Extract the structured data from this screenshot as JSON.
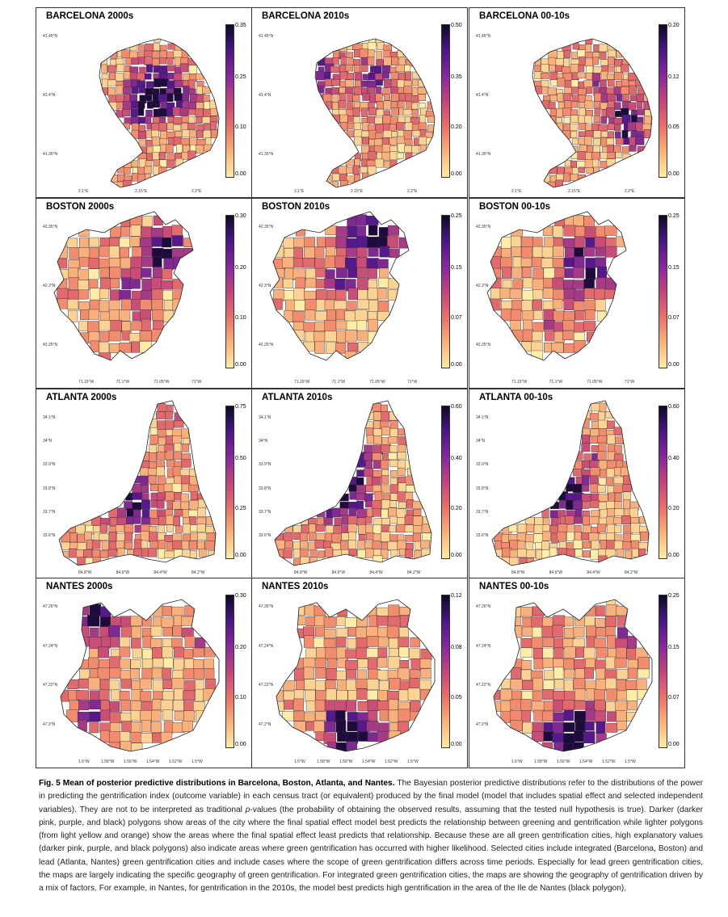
{
  "panels": [
    {
      "title": "BARCELONA 2000s",
      "city": "barcelona",
      "row": 0,
      "col": 0,
      "ticks": [
        "0.35",
        "0.25",
        "0.10",
        "0.00"
      ],
      "lats": [
        "41.45°N",
        "41.4°N",
        "41.35°N"
      ],
      "lons": [
        "2.1°E",
        "2.15°E",
        "2.2°E"
      ]
    },
    {
      "title": "BARCELONA 2010s",
      "city": "barcelona",
      "row": 0,
      "col": 1,
      "ticks": [
        "0.50",
        "0.35",
        "0.20",
        "0.00"
      ],
      "lats": [
        "41.45°N",
        "41.4°N",
        "41.35°N"
      ],
      "lons": [
        "2.1°E",
        "2.15°E",
        "2.2°E"
      ]
    },
    {
      "title": "BARCELONA 00-10s",
      "city": "barcelona",
      "row": 0,
      "col": 2,
      "ticks": [
        "0.20",
        "0.12",
        "0.05",
        "0.00"
      ],
      "lats": [
        "41.45°N",
        "41.4°N",
        "41.35°N"
      ],
      "lons": [
        "2.1°E",
        "2.15°E",
        "2.2°E"
      ]
    },
    {
      "title": "BOSTON 2000s",
      "city": "boston",
      "row": 1,
      "col": 0,
      "ticks": [
        "0.30",
        "0.20",
        "0.10",
        "0.00"
      ],
      "lats": [
        "42.35°N",
        "42.3°N",
        "42.25°N"
      ],
      "lons": [
        "71.15°W",
        "71.1°W",
        "71.05°W",
        "71°W"
      ]
    },
    {
      "title": "BOSTON 2010s",
      "city": "boston",
      "row": 1,
      "col": 1,
      "ticks": [
        "0.25",
        "0.15",
        "0.07",
        "0.00"
      ],
      "lats": [
        "42.35°N",
        "42.3°N",
        "42.25°N"
      ],
      "lons": [
        "71.15°W",
        "71.1°W",
        "71.05°W",
        "71°W"
      ]
    },
    {
      "title": "BOSTON 00-10s",
      "city": "boston",
      "row": 1,
      "col": 2,
      "ticks": [
        "0.25",
        "0.15",
        "0.07",
        "0.00"
      ],
      "lats": [
        "42.35°N",
        "42.3°N",
        "42.25°N"
      ],
      "lons": [
        "71.15°W",
        "71.1°W",
        "71.05°W",
        "71°W"
      ]
    },
    {
      "title": "ATLANTA 2000s",
      "city": "atlanta",
      "row": 2,
      "col": 0,
      "ticks": [
        "0.75",
        "0.50",
        "0.25",
        "0.00"
      ],
      "lats": [
        "34.1°N",
        "34°N",
        "33.9°N",
        "33.8°N",
        "33.7°N",
        "33.6°N"
      ],
      "lons": [
        "84.8°W",
        "84.6°W",
        "84.4°W",
        "84.2°W"
      ]
    },
    {
      "title": "ATLANTA 2010s",
      "city": "atlanta",
      "row": 2,
      "col": 1,
      "ticks": [
        "0.60",
        "0.40",
        "0.20",
        "0.00"
      ],
      "lats": [
        "34.1°N",
        "34°N",
        "33.9°N",
        "33.8°N",
        "33.7°N",
        "33.6°N"
      ],
      "lons": [
        "84.8°W",
        "84.6°W",
        "84.4°W",
        "84.2°W"
      ]
    },
    {
      "title": "ATLANTA 00-10s",
      "city": "atlanta",
      "row": 2,
      "col": 2,
      "ticks": [
        "0.60",
        "0.40",
        "0.20",
        "0.00"
      ],
      "lats": [
        "34.1°N",
        "34°N",
        "33.9°N",
        "33.8°N",
        "33.7°N",
        "33.6°N"
      ],
      "lons": [
        "84.8°W",
        "84.6°W",
        "84.4°W",
        "84.2°W"
      ]
    },
    {
      "title": "NANTES 2000s",
      "city": "nantes",
      "row": 3,
      "col": 0,
      "ticks": [
        "0.30",
        "0.20",
        "0.10",
        "0.00"
      ],
      "lats": [
        "47.26°N",
        "47.24°N",
        "47.22°N",
        "47.2°N"
      ],
      "lons": [
        "1.6°W",
        "1.58°W",
        "1.56°W",
        "1.54°W",
        "1.52°W",
        "1.5°W"
      ]
    },
    {
      "title": "NANTES 2010s",
      "city": "nantes",
      "row": 3,
      "col": 1,
      "ticks": [
        "0.12",
        "0.08",
        "0.05",
        "0.00"
      ],
      "lats": [
        "47.26°N",
        "47.24°N",
        "47.22°N",
        "47.2°N"
      ],
      "lons": [
        "1.6°W",
        "1.58°W",
        "1.56°W",
        "1.54°W",
        "1.52°W",
        "1.5°W"
      ]
    },
    {
      "title": "NANTES 00-10s",
      "city": "nantes",
      "row": 3,
      "col": 2,
      "ticks": [
        "0.25",
        "0.15",
        "0.07",
        "0.00"
      ],
      "lats": [
        "47.26°N",
        "47.24°N",
        "47.22°N",
        "47.2°N"
      ],
      "lons": [
        "1.6°W",
        "1.58°W",
        "1.56°W",
        "1.54°W",
        "1.52°W",
        "1.5°W"
      ]
    }
  ],
  "caption": {
    "label": "Fig. 5 Mean of posterior predictive distributions in Barcelona, Boston, Atlanta, and Nantes.",
    "text_a": "The Bayesian posterior predictive distributions refer to the distributions of the power in predicting the gentrification index (outcome variable) in each census tract (or equivalent) produced by the final model (model that includes spatial effect and selected independent variables). They are not to be interpreted as traditional ",
    "p_value": "p",
    "text_b": "-values (the probability of obtaining the observed results, assuming that the tested null hypothesis is true). Darker (darker pink, purple, and black) polygons show areas of the city where the final spatial effect model best predicts the relationship between greening and gentrification while lighter polygons (from light yellow and orange) show the areas where the final spatial effect least predicts that relationship. Because these are all green gentrification cities, high explanatory values (darker pink, purple, and black polygons) also indicate areas where green gentrification has occurred with higher likelihood. Selected cities include integrated (Barcelona, Boston) and lead (Atlanta, Nantes) green gentrification cities and include cases where the scope of green gentrification differs across time periods. Especially for lead green gentrification cities, the maps are largely indicating the specific geography of green gentrification. For integrated green gentrification cities, the maps are showing the geography of gentrification driven by a mix of factors. For example, in Nantes, for gentrification in the 2010s, the model best predicts high gentrification in the area of the Ile de Nantes (black polygon),"
  }
}
